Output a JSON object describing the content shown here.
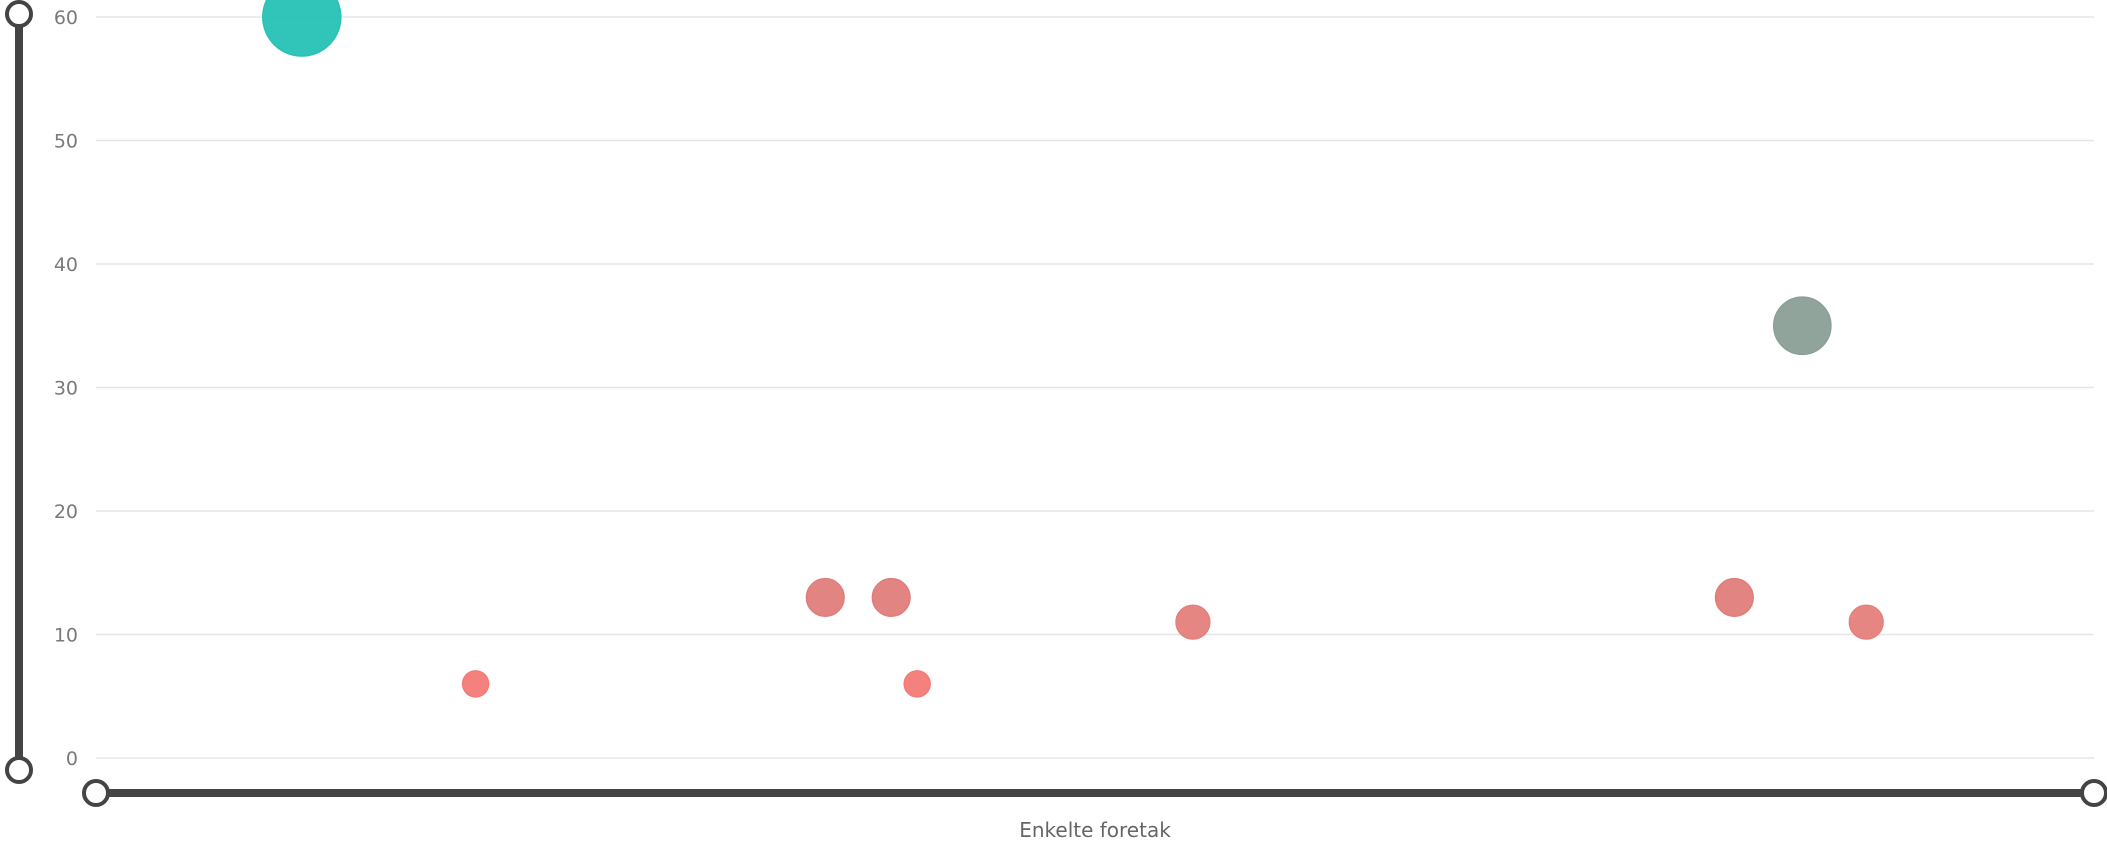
{
  "chart_data": {
    "type": "scatter",
    "title": "",
    "xlabel": "Enkelte foretak",
    "ylabel": "",
    "ylim": [
      0,
      60
    ],
    "yticks": [
      0,
      10,
      20,
      30,
      40,
      50,
      60
    ],
    "xlim": [
      0,
      100
    ],
    "grid": true,
    "legend": "none",
    "points": [
      {
        "x": 10.3,
        "y": 60,
        "size": 3.0,
        "color": "#26c2b5"
      },
      {
        "x": 19.0,
        "y": 6,
        "size": 1.0,
        "color": "#f47a77"
      },
      {
        "x": 36.5,
        "y": 13,
        "size": 1.45,
        "color": "#e07d7a"
      },
      {
        "x": 39.8,
        "y": 13,
        "size": 1.45,
        "color": "#e07d7a"
      },
      {
        "x": 41.1,
        "y": 6,
        "size": 1.0,
        "color": "#f47a77"
      },
      {
        "x": 54.9,
        "y": 11,
        "size": 1.3,
        "color": "#e57f7b"
      },
      {
        "x": 82.0,
        "y": 13,
        "size": 1.45,
        "color": "#e07d7a"
      },
      {
        "x": 85.4,
        "y": 35,
        "size": 2.2,
        "color": "#8a9f97"
      },
      {
        "x": 88.6,
        "y": 11,
        "size": 1.3,
        "color": "#e57f7b"
      }
    ]
  }
}
